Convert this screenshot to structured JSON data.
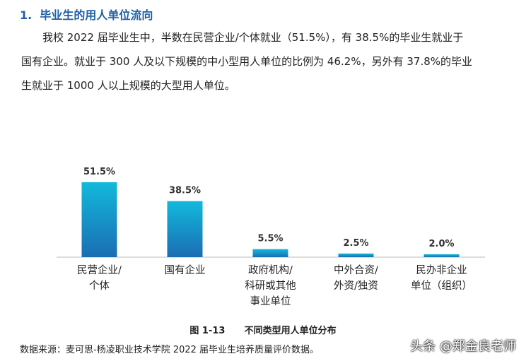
{
  "heading": "1.  毕业生的用人单位流向",
  "paragraph": "我校 2022 届毕业生中，半数在民营企业/个体就业（51.5%），有 38.5%的毕业生就业于国有企业。就业于 300 人及以下规模的中小型用人单位的比例为 46.2%，另外有 37.8%的毕业生就业于 1000 人以上规模的大型用人单位。",
  "chart_data": {
    "type": "bar",
    "categories": [
      "民营企业/\n个体",
      "国有企业",
      "政府机构/\n科研或其他\n事业单位",
      "中外合资/\n外资/独资",
      "民办非企业\n单位（组织）"
    ],
    "values": [
      51.5,
      38.5,
      5.5,
      2.5,
      2.0
    ],
    "value_labels": [
      "51.5%",
      "38.5%",
      "5.5%",
      "2.5%",
      "2.0%"
    ],
    "color": "#1a8fcc"
  },
  "caption": "图 1-13      不同类型用人单位分布",
  "source": "数据来源：麦可思-杨凌职业技术学院 2022 届毕业生培养质量评价数据。",
  "watermark": "头条 @郑金良老师"
}
